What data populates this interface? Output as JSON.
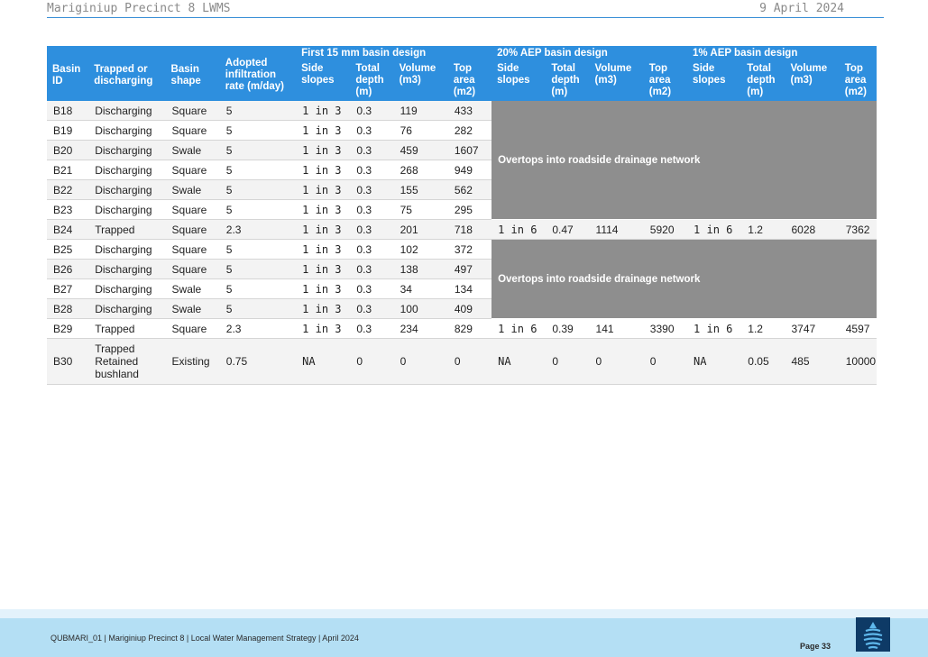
{
  "header": {
    "doc_title": "Mariginiup Precinct 8 LWMS",
    "date": "9 April 2024"
  },
  "table": {
    "group_headers": [
      "First 15 mm basin design",
      "20% AEP basin design",
      "1% AEP basin design"
    ],
    "headers": {
      "basin_id": "Basin ID",
      "trapped": "Trapped or discharging",
      "shape": "Basin shape",
      "infiltration": "Adopted infiltration rate (m/day)",
      "side_slopes": "Side slopes",
      "total_depth": "Total depth (m)",
      "volume": "Volume (m3)",
      "top_area": "Top area (m2)"
    },
    "merged_note": "Overtops into roadside drainage network",
    "rows": [
      [
        "B18",
        "Discharging",
        "Square",
        "5",
        "1 in 3",
        "0.3",
        "119",
        "433"
      ],
      [
        "B19",
        "Discharging",
        "Square",
        "5",
        "1 in 3",
        "0.3",
        "76",
        "282"
      ],
      [
        "B20",
        "Discharging",
        "Swale",
        "5",
        "1 in 3",
        "0.3",
        "459",
        "1607"
      ],
      [
        "B21",
        "Discharging",
        "Square",
        "5",
        "1 in 3",
        "0.3",
        "268",
        "949"
      ],
      [
        "B22",
        "Discharging",
        "Swale",
        "5",
        "1 in 3",
        "0.3",
        "155",
        "562"
      ],
      [
        "B23",
        "Discharging",
        "Square",
        "5",
        "1 in 3",
        "0.3",
        "75",
        "295"
      ],
      [
        "B24",
        "Trapped",
        "Square",
        "2.3",
        "1 in 3",
        "0.3",
        "201",
        "718",
        "1 in 6",
        "0.47",
        "1114",
        "5920",
        "1 in 6",
        "1.2",
        "6028",
        "7362"
      ],
      [
        "B25",
        "Discharging",
        "Square",
        "5",
        "1 in 3",
        "0.3",
        "102",
        "372"
      ],
      [
        "B26",
        "Discharging",
        "Square",
        "5",
        "1 in 3",
        "0.3",
        "138",
        "497"
      ],
      [
        "B27",
        "Discharging",
        "Swale",
        "5",
        "1 in 3",
        "0.3",
        "34",
        "134"
      ],
      [
        "B28",
        "Discharging",
        "Swale",
        "5",
        "1 in 3",
        "0.3",
        "100",
        "409"
      ],
      [
        "B29",
        "Trapped",
        "Square",
        "2.3",
        "1 in 3",
        "0.3",
        "234",
        "829",
        "1 in 6",
        "0.39",
        "141",
        "3390",
        "1 in 6",
        "1.2",
        "3747",
        "4597"
      ],
      [
        "B30",
        "Trapped Retained bushland",
        "Existing",
        "0.75",
        "NA",
        "0",
        "0",
        "0",
        "NA",
        "0",
        "0",
        "0",
        "NA",
        "0.05",
        "485",
        "10000"
      ]
    ]
  },
  "footer": {
    "text": "QUBMARI_01 | Mariginiup Precinct 8 | Local Water Management Strategy | April 2024",
    "page": "Page 33"
  },
  "colors": {
    "header_blue": "#2e8fde",
    "merged_grey": "#8e8e8e",
    "footer_blue": "#b4dff4",
    "logo_navy": "#0e3a66"
  },
  "icons": {
    "logo": "water-drop-logo"
  }
}
